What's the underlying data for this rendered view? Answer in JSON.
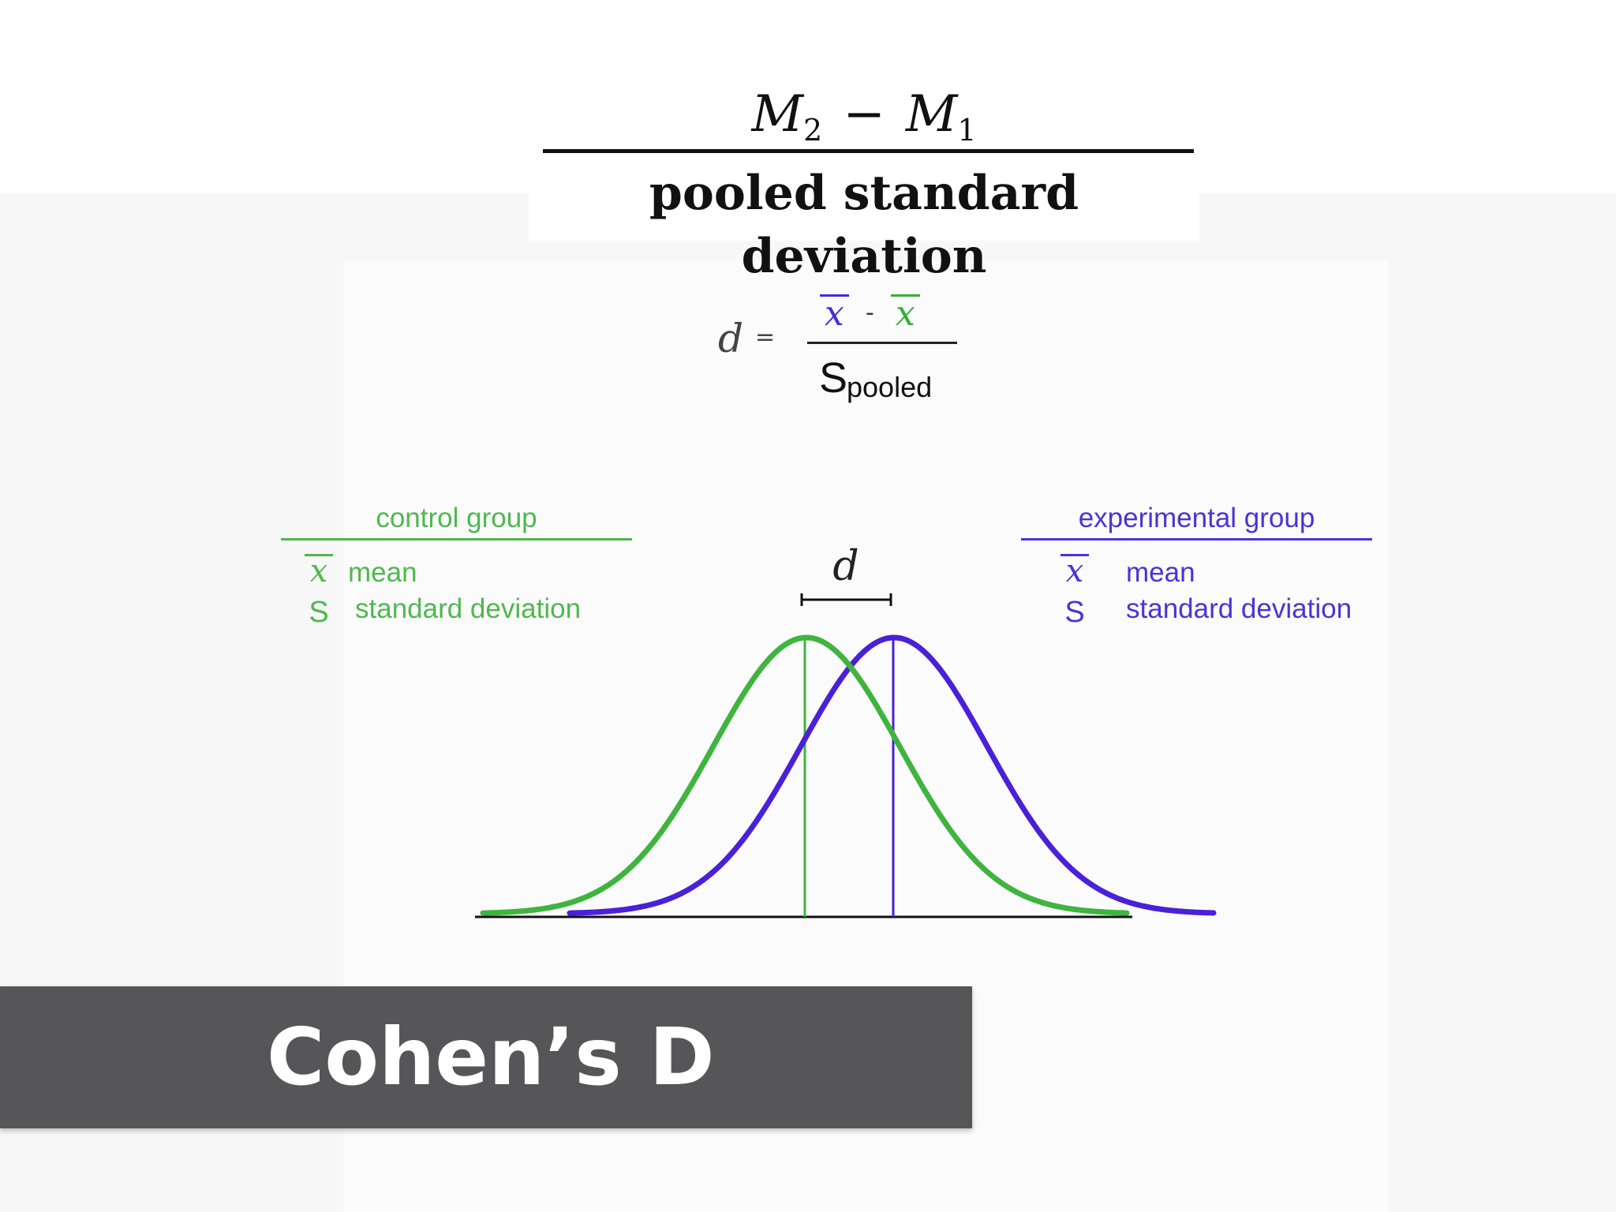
{
  "formula_top": {
    "numerator_a": "M",
    "numerator_a_sub": "2",
    "minus": "−",
    "numerator_b": "M",
    "numerator_b_sub": "1",
    "denominator": "pooled standard deviation"
  },
  "formula_d": {
    "d": "d",
    "equals": "=",
    "xbar_1": "x",
    "minus": "-",
    "xbar_2": "x",
    "s": "S",
    "s_sub": "pooled"
  },
  "control_group": {
    "title": "control group",
    "xbar": "x",
    "mean_label": "mean",
    "s": "S",
    "sd_label": "standard deviation",
    "color": "#3fb43f"
  },
  "experimental_group": {
    "title": "experimental group",
    "xbar": "x",
    "mean_label": "mean",
    "s": "S",
    "sd_label": "standard deviation",
    "color": "#4a20d8"
  },
  "diagram": {
    "d_label": "d",
    "distributions": [
      {
        "group": "control",
        "mean": 0,
        "sd": 1
      },
      {
        "group": "experimental",
        "mean": 0.5,
        "sd": 1
      }
    ]
  },
  "banner": {
    "title": "Cohen’s D"
  }
}
